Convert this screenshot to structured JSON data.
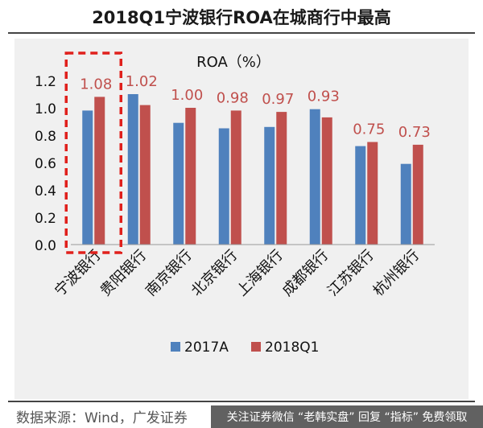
{
  "header": {
    "title": "2018Q1宁波银行ROA在城商行中最高"
  },
  "footer": {
    "source": "数据来源：Wind，广发证券",
    "watermark": "关注证券微信 “老韩实盘” 回复 “指标” 免费领取"
  },
  "chart_data": {
    "type": "bar",
    "title": "ROA（%）",
    "categories": [
      "宁波银行",
      "贵阳银行",
      "南京银行",
      "北京银行",
      "上海银行",
      "成都银行",
      "江苏银行",
      "杭州银行"
    ],
    "series": [
      {
        "name": "2017A",
        "values": [
          0.98,
          1.1,
          0.89,
          0.85,
          0.86,
          0.99,
          0.72,
          0.59
        ],
        "color": "#4f81bd"
      },
      {
        "name": "2018Q1",
        "values": [
          1.08,
          1.02,
          1.0,
          0.98,
          0.97,
          0.93,
          0.75,
          0.73
        ],
        "color": "#c0504d"
      }
    ],
    "data_labels": {
      "series": "2018Q1",
      "text": [
        "1.08",
        "1.02",
        "1.00",
        "0.98",
        "0.97",
        "0.93",
        "0.75",
        "0.73"
      ],
      "color": "#c0504d"
    },
    "ylim": [
      0,
      1.2
    ],
    "yticks": [
      "0.0",
      "0.2",
      "0.4",
      "0.6",
      "0.8",
      "1.0",
      "1.2"
    ],
    "xlabel": "",
    "ylabel": "",
    "grid": false,
    "legend_position": "bottom",
    "highlight": {
      "category": "宁波银行",
      "style": "dashed-box",
      "color": "#e0201c"
    }
  }
}
